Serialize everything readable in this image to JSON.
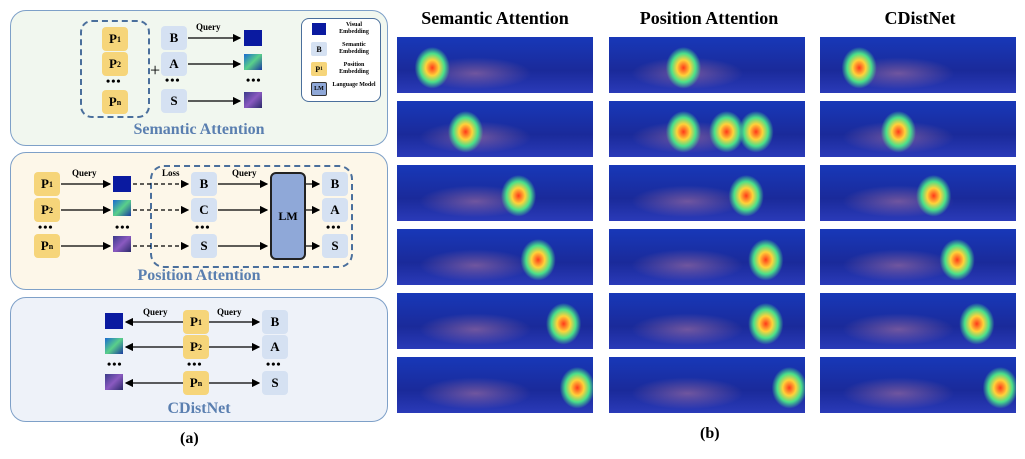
{
  "panel_a": {
    "semantic": {
      "title": "Semantic Attention",
      "query_label": "Query",
      "positions": [
        "P",
        "P",
        "P"
      ],
      "position_subs": [
        "1",
        "2",
        "n"
      ],
      "chars": [
        "B",
        "A",
        "S"
      ],
      "dots": "•••",
      "plus": "+"
    },
    "legend": {
      "visual": "Visual Embedding",
      "semantic_token": "B",
      "semantic": "Semantic Embedding",
      "position_token": "P",
      "position_sub": "1",
      "position": "Position Embedding",
      "lm_token": "LM",
      "lm": "Language Model"
    },
    "position": {
      "title": "Position Attention",
      "query_label": "Query",
      "loss_label": "Loss",
      "query2_label": "Query",
      "positions": [
        "P",
        "P",
        "P"
      ],
      "position_subs": [
        "1",
        "2",
        "n"
      ],
      "chars_in": [
        "B",
        "C",
        "S"
      ],
      "chars_out": [
        "B",
        "A",
        "S"
      ],
      "lm_label": "LM",
      "dots": "•••"
    },
    "cdistnet": {
      "title": "CDistNet",
      "query_left": "Query",
      "query_right": "Query",
      "positions": [
        "P",
        "P",
        "P"
      ],
      "position_subs": [
        "1",
        "2",
        "n"
      ],
      "chars": [
        "B",
        "A",
        "S"
      ],
      "dots": "•••"
    },
    "caption": "(a)"
  },
  "panel_b": {
    "columns": [
      "Semantic Attention",
      "Position Attention",
      "CDistNet"
    ],
    "caption": "(b)"
  },
  "colors": {
    "position": "#f6d57a",
    "semantic": "#d5e1f2",
    "border": "#7ea0c8",
    "title": "#5a7fb0",
    "lm": "#8fa8d8"
  }
}
